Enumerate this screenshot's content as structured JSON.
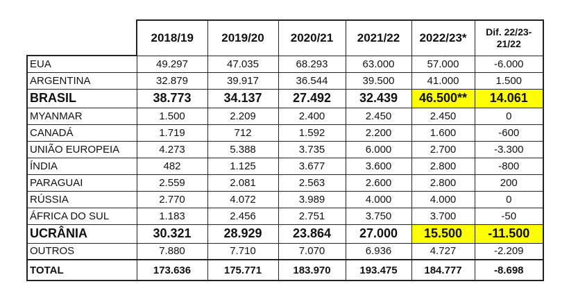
{
  "colors": {
    "highlight": "#ffff00"
  },
  "headers": [
    "2018/19",
    "2019/20",
    "2020/21",
    "2021/22",
    "2022/23*",
    "Dif. 22/23-21/22"
  ],
  "rows": [
    {
      "label": "EUA",
      "values": [
        "49.297",
        "47.035",
        "68.293",
        "63.000",
        "57.000",
        "-6.000"
      ]
    },
    {
      "label": "ARGENTINA",
      "values": [
        "32.879",
        "39.917",
        "36.544",
        "39.500",
        "41.000",
        "1.500"
      ]
    },
    {
      "label": "BRASIL",
      "values": [
        "38.773",
        "34.137",
        "27.492",
        "32.439",
        "46.500**",
        "14.061"
      ]
    },
    {
      "label": "MYANMAR",
      "values": [
        "1.500",
        "2.209",
        "2.400",
        "2.450",
        "2.450",
        "0"
      ]
    },
    {
      "label": "CANADÁ",
      "values": [
        "1.719",
        "712",
        "1.592",
        "2.200",
        "1.600",
        "-600"
      ]
    },
    {
      "label": "UNIÃO EUROPEIA",
      "values": [
        "4.273",
        "5.388",
        "3.735",
        "6.000",
        "2.700",
        "-3.300"
      ]
    },
    {
      "label": "ÍNDIA",
      "values": [
        "482",
        "1.125",
        "3.677",
        "3.600",
        "2.800",
        "-800"
      ]
    },
    {
      "label": "PARAGUAI",
      "values": [
        "2.559",
        "2.081",
        "2.563",
        "2.600",
        "2.800",
        "200"
      ]
    },
    {
      "label": "RÚSSIA",
      "values": [
        "2.770",
        "4.072",
        "3.989",
        "4.000",
        "4.000",
        "0"
      ]
    },
    {
      "label": "ÁFRICA DO SUL",
      "values": [
        "1.183",
        "2.456",
        "2.751",
        "3.750",
        "3.700",
        "-50"
      ]
    },
    {
      "label": "UCRÂNIA",
      "values": [
        "30.321",
        "28.929",
        "23.864",
        "27.000",
        "15.500",
        "-11.500"
      ]
    },
    {
      "label": "OUTROS",
      "values": [
        "7.880",
        "7.710",
        "7.070",
        "6.936",
        "4.727",
        "-2.209"
      ]
    },
    {
      "label": "TOTAL",
      "values": [
        "173.636",
        "175.771",
        "183.970",
        "193.475",
        "184.777",
        "-8.698"
      ]
    }
  ]
}
